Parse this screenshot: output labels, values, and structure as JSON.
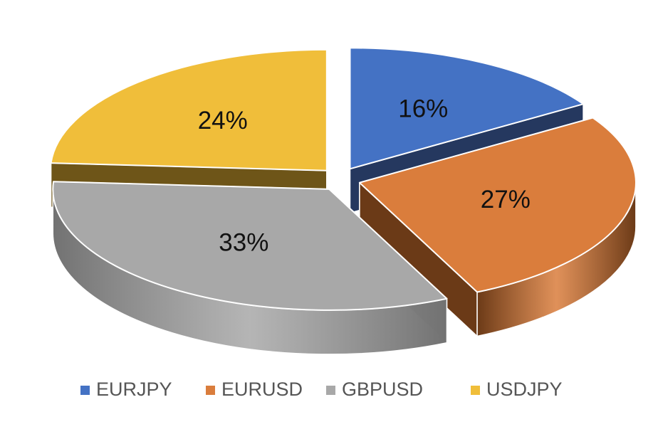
{
  "chart_data": {
    "type": "pie",
    "style": "3d-exploded",
    "categories": [
      "EURJPY",
      "EURUSD",
      "GBPUSD",
      "USDJPY"
    ],
    "values": [
      16,
      27,
      33,
      24
    ],
    "labels": [
      "16%",
      "27%",
      "33%",
      "24%"
    ],
    "colors": [
      "#4472C4",
      "#DA7D3C",
      "#A8A8A8",
      "#F0BE3A"
    ],
    "side_colors": [
      "#25385F",
      "#6B3A17",
      "#727272",
      "#6E5518"
    ],
    "legend": {
      "position": "bottom",
      "items": [
        "EURJPY",
        "EURUSD",
        "GBPUSD",
        "USDJPY"
      ]
    }
  }
}
